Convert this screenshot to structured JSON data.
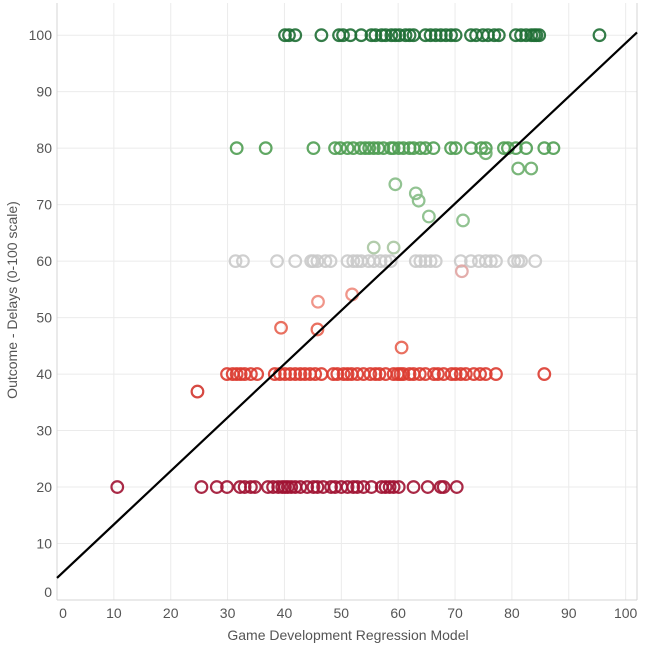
{
  "chart_data": {
    "type": "scatter",
    "title": "",
    "xlabel": "Game Development Regression Model",
    "ylabel": "Outcome - Delays (0-100 scale)",
    "xlim": [
      0,
      102
    ],
    "ylim": [
      0,
      105.7
    ],
    "xticks": [
      0,
      10,
      20,
      30,
      40,
      50,
      60,
      70,
      80,
      90,
      100
    ],
    "yticks": [
      0,
      10,
      20,
      30,
      40,
      50,
      60,
      70,
      80,
      90,
      100
    ],
    "grid": true,
    "marker": "hollow-circle",
    "trendline": {
      "intercept": 3.9,
      "slope": 0.947,
      "color": "#000000"
    },
    "series": [
      {
        "color": "#1e6e34",
        "y": 100,
        "x": [
          40.1,
          40.8,
          41.9,
          46.5,
          49.6,
          50.3,
          51.6,
          53.5,
          55.3,
          56.0,
          57.1,
          57.8,
          58.8,
          59.5,
          60.2,
          61.3,
          62.0,
          62.7,
          64.8,
          65.7,
          66.6,
          67.5,
          68.4,
          69.3,
          70.1,
          72.8,
          73.7,
          74.9,
          75.8,
          76.9,
          77.7,
          80.7,
          81.6,
          82.5,
          83.4,
          83.9,
          84.3,
          84.8,
          95.4
        ]
      },
      {
        "color": "#4f9d52",
        "y": 80,
        "x": [
          31.6,
          36.7,
          45.1,
          48.9,
          49.8,
          51.1,
          52.1,
          53.4,
          54.2,
          54.9,
          55.7,
          56.5,
          57.4,
          58.7,
          59.2,
          60.1,
          60.9,
          62.0,
          62.7,
          63.9,
          64.8,
          66.2,
          69.3,
          70.1,
          72.8,
          74.6,
          75.4,
          78.6,
          79.3,
          80.7,
          82.5,
          85.7,
          87.3
        ]
      },
      {
        "color": "#6aad6a",
        "points": [
          [
            75.4,
            79.1
          ],
          [
            81.1,
            76.4
          ],
          [
            83.4,
            76.4
          ]
        ]
      },
      {
        "color": "#86bd86",
        "points": [
          [
            59.5,
            73.6
          ],
          [
            63.1,
            72.0
          ],
          [
            63.6,
            70.7
          ],
          [
            65.4,
            67.9
          ],
          [
            71.4,
            67.2
          ]
        ]
      },
      {
        "color": "#aac7a2",
        "points": [
          [
            55.7,
            62.4
          ],
          [
            59.2,
            62.4
          ]
        ]
      },
      {
        "color": "#cacaca",
        "y": 60,
        "x": [
          31.4,
          32.7,
          38.7,
          41.9,
          44.7,
          45.1,
          45.8,
          47.2,
          48.1,
          51.1,
          52.1,
          52.8,
          53.5,
          54.8,
          55.7,
          56.9,
          57.8,
          58.7,
          63.1,
          63.9,
          64.8,
          65.7,
          66.6,
          71.0,
          72.8,
          74.2,
          75.4,
          76.3,
          77.2,
          80.4,
          81.1,
          81.6,
          84.1
        ]
      },
      {
        "color": "#e0a4a2",
        "points": [
          [
            71.2,
            58.2
          ]
        ]
      },
      {
        "color": "#ee8a7c",
        "points": [
          [
            45.9,
            52.8
          ],
          [
            51.9,
            54.1
          ]
        ]
      },
      {
        "color": "#e7614f",
        "points": [
          [
            39.4,
            48.2
          ],
          [
            45.8,
            47.9
          ],
          [
            60.6,
            44.7
          ]
        ]
      },
      {
        "color": "#dc3b30",
        "y": 40,
        "x": [
          29.9,
          30.9,
          31.6,
          32.3,
          33.0,
          34.1,
          35.2,
          38.3,
          39.2,
          40.1,
          41.0,
          41.9,
          42.8,
          43.6,
          44.5,
          45.4,
          46.5,
          48.6,
          49.3,
          50.4,
          51.1,
          51.8,
          52.8,
          53.9,
          55.1,
          56.0,
          56.7,
          57.8,
          59.2,
          59.9,
          60.4,
          60.9,
          62.0,
          62.7,
          63.8,
          64.8,
          66.3,
          67.0,
          68.0,
          69.4,
          70.1,
          71.0,
          71.9,
          73.3,
          74.4,
          75.4,
          77.2,
          85.7
        ]
      },
      {
        "color": "#d2352e",
        "points": [
          [
            24.7,
            36.9
          ]
        ]
      },
      {
        "color": "#a01232",
        "y": 20,
        "x": [
          10.6,
          25.4,
          28.1,
          29.9,
          32.2,
          33.0,
          34.1,
          34.8,
          37.1,
          38.0,
          38.9,
          39.6,
          40.1,
          40.6,
          41.2,
          41.9,
          42.8,
          44.0,
          45.1,
          45.8,
          46.8,
          48.2,
          48.9,
          50.0,
          51.1,
          52.1,
          52.8,
          53.9,
          55.3,
          57.1,
          57.8,
          58.5,
          59.2,
          60.1,
          62.7,
          65.2,
          67.5,
          68.0,
          70.3
        ]
      }
    ]
  }
}
